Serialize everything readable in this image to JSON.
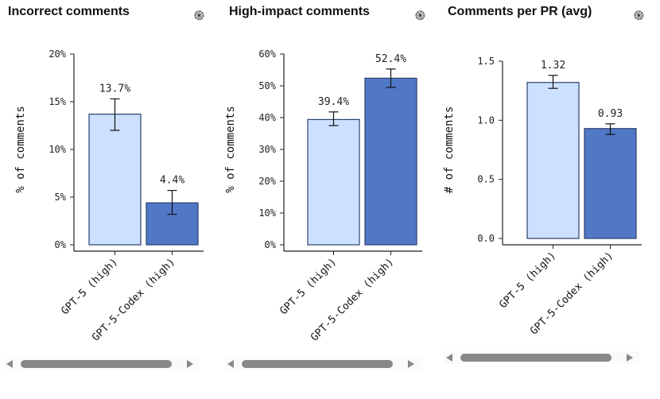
{
  "colors": {
    "light": "#cce0ff",
    "dark": "#5078c6",
    "outline": "#2b3f6e"
  },
  "chart_data": [
    {
      "type": "bar",
      "title": "Incorrect comments",
      "ylabel": "% of comments",
      "categories": [
        "GPT-5 (high)",
        "GPT-5-Codex (high)"
      ],
      "values": [
        13.7,
        4.4
      ],
      "errors": [
        [
          12.0,
          15.3
        ],
        [
          3.2,
          5.7
        ]
      ],
      "data_labels": [
        "13.7%",
        "4.4%"
      ],
      "ylim": [
        0,
        20
      ],
      "ticks": [
        "0%",
        "5%",
        "10%",
        "15%",
        "20%"
      ],
      "tick_values": [
        0,
        5,
        10,
        15,
        20
      ]
    },
    {
      "type": "bar",
      "title": "High-impact comments",
      "ylabel": "% of comments",
      "categories": [
        "GPT-5 (high)",
        "GPT-5-Codex (high)"
      ],
      "values": [
        39.4,
        52.4
      ],
      "errors": [
        [
          37.5,
          41.8
        ],
        [
          49.5,
          55.3
        ]
      ],
      "data_labels": [
        "39.4%",
        "52.4%"
      ],
      "ylim": [
        0,
        60
      ],
      "ticks": [
        "0%",
        "10%",
        "20%",
        "30%",
        "40%",
        "50%",
        "60%"
      ],
      "tick_values": [
        0,
        10,
        20,
        30,
        40,
        50,
        60
      ]
    },
    {
      "type": "bar",
      "title": "Comments per PR (avg)",
      "ylabel": "# of comments",
      "categories": [
        "GPT-5 (high)",
        "GPT-5-Codex (high)"
      ],
      "values": [
        1.32,
        0.93
      ],
      "errors": [
        [
          1.27,
          1.38
        ],
        [
          0.88,
          0.97
        ]
      ],
      "data_labels": [
        "1.32",
        "0.93"
      ],
      "ylim": [
        0,
        1.5
      ],
      "ticks": [
        "0.0",
        "0.5",
        "1.0",
        "1.5"
      ],
      "tick_values": [
        0,
        0.5,
        1.0,
        1.5
      ]
    }
  ]
}
